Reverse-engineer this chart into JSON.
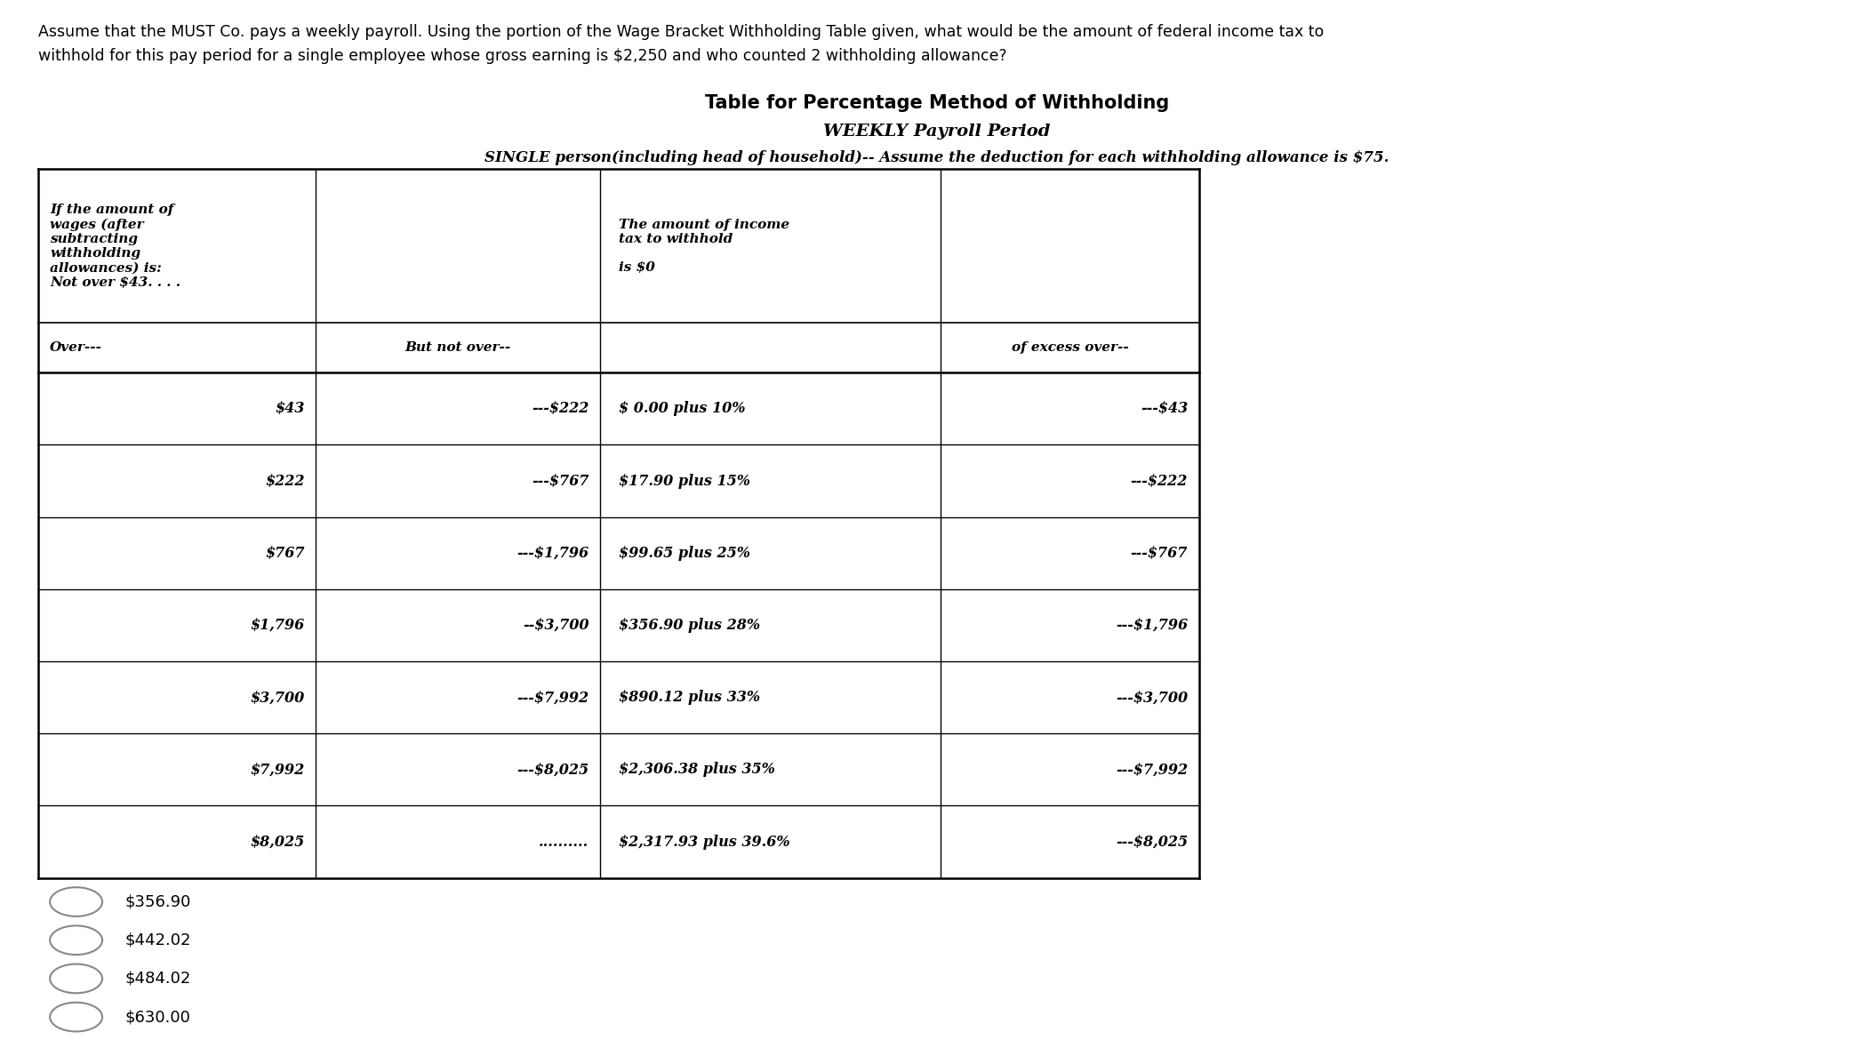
{
  "question_line1": "Assume that the MUST Co. pays a weekly payroll. Using the portion of the Wage Bracket Withholding Table given, what would be the amount of federal income tax to",
  "question_line2": "withhold for this pay period for a single employee whose gross earning is $2,250 and who counted 2 withholding allowance?",
  "title1": "Table for Percentage Method of Withholding",
  "title2": "WEEKLY Payroll Period",
  "title3": "SINGLE person(including head of household)-- Assume the deduction for each withholding allowance is $75.",
  "header_col0": "If the amount of\nwages (after\nsubtracting\nwithholding\nallowances) is:\nNot over $43. . . .",
  "header_col2": "The amount of income\ntax to withhold\n\nis $0",
  "subheader_col0": "Over---",
  "subheader_col1": "But not over--",
  "subheader_col3": "of excess over--",
  "table_rows": [
    [
      "$43",
      "---$222",
      "$ 0.00 plus 10%",
      "---$43"
    ],
    [
      "$222",
      "---$767",
      "$17.90 plus 15%",
      "---$222"
    ],
    [
      "$767",
      "---$1,796",
      "$99.65 plus 25%",
      "---$767"
    ],
    [
      "$1,796",
      "--$3,700",
      "$356.90 plus 28%",
      "---$1,796"
    ],
    [
      "$3,700",
      "---$7,992",
      "$890.12 plus 33%",
      "---$3,700"
    ],
    [
      "$7,992",
      "---$8,025",
      "$2,306.38 plus 35%",
      "---$7,992"
    ],
    [
      "$8,025",
      "..........",
      "$2,317.93 plus 39.6%",
      "---$8,025"
    ]
  ],
  "choices": [
    "$356.90",
    "$442.02",
    "$484.02",
    "$630.00"
  ],
  "bg_color": "#ffffff"
}
